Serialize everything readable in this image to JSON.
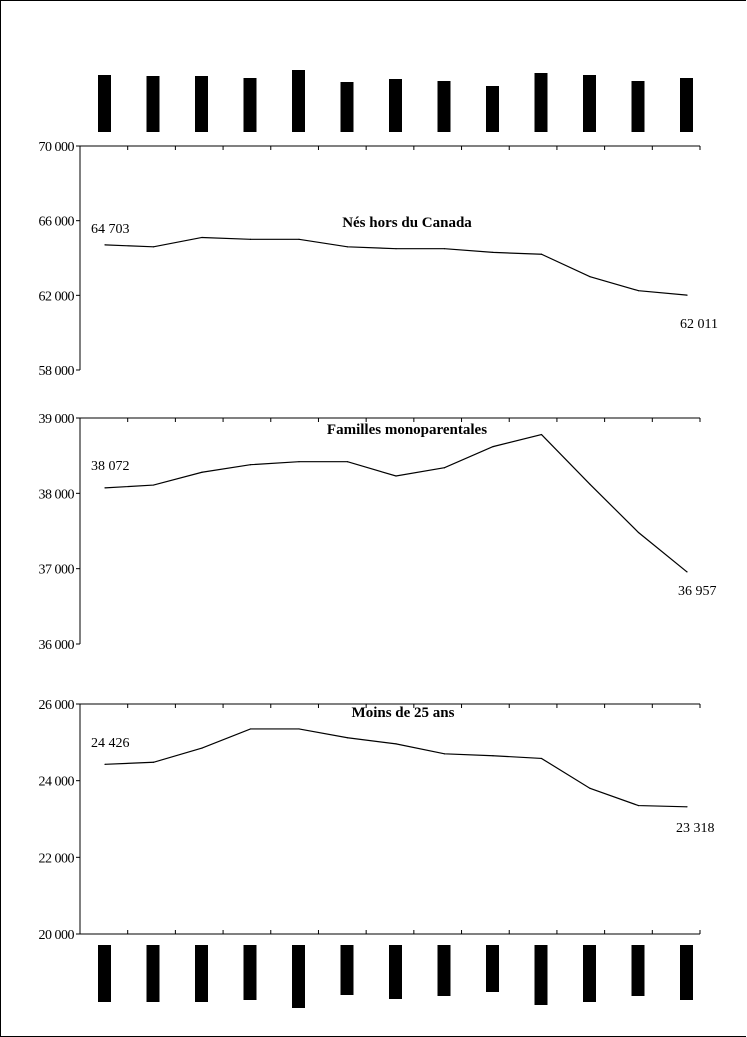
{
  "chart_data": [
    {
      "type": "line",
      "title": "Nés hors du Canada",
      "y_ticks": [
        "70 000",
        "66 000",
        "62 000",
        "58 000"
      ],
      "ylim": [
        58000,
        70000
      ],
      "values": [
        64703,
        64600,
        65100,
        65000,
        65000,
        64600,
        64500,
        64500,
        64300,
        64200,
        63000,
        62250,
        62011
      ],
      "start_label": "64 703",
      "end_label": "62 011",
      "xlabel": "",
      "ylabel": ""
    },
    {
      "type": "line",
      "title": "Familles monoparentales",
      "y_ticks": [
        "39 000",
        "38 000",
        "37 000",
        "36 000"
      ],
      "ylim": [
        36000,
        39000
      ],
      "values": [
        38072,
        38110,
        38280,
        38380,
        38420,
        38420,
        38230,
        38340,
        38620,
        38780,
        38120,
        37480,
        36957
      ],
      "start_label": "38 072",
      "end_label": "36 957",
      "xlabel": "",
      "ylabel": ""
    },
    {
      "type": "line",
      "title": "Moins de 25 ans",
      "y_ticks": [
        "26 000",
        "24 000",
        "22 000",
        "20 000"
      ],
      "ylim": [
        20000,
        26000
      ],
      "values": [
        24426,
        24480,
        24850,
        25350,
        25350,
        25120,
        24960,
        24700,
        24650,
        24580,
        23800,
        23350,
        23318
      ],
      "start_label": "24 426",
      "end_label": "23 318",
      "xlabel": "",
      "ylabel": ""
    }
  ],
  "top_bars": {
    "type": "bar",
    "values": [
      57,
      56,
      56,
      54,
      62,
      50,
      53,
      51,
      46,
      59,
      57,
      51,
      54
    ]
  },
  "bottom_bars": {
    "type": "bar",
    "values": [
      57,
      57,
      57,
      55,
      63,
      50,
      54,
      51,
      47,
      60,
      57,
      51,
      55
    ]
  }
}
